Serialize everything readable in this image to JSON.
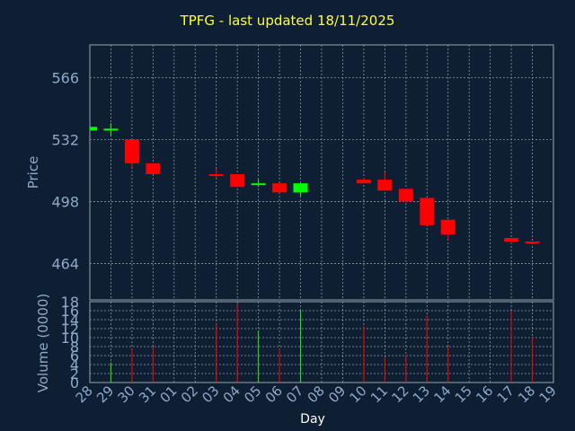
{
  "colors": {
    "background": "#0f1f33",
    "panel_border": "#9aa3ad",
    "grid": "#8c96a0",
    "axis_text": "#8fa8c8",
    "title": "#ffff33",
    "up": "#00ff00",
    "down": "#ff0000"
  },
  "chart_data": {
    "type": "candlestick",
    "title": "TPFG - last updated 18/11/2025",
    "xlabel": "Day",
    "ylabel_price": "Price",
    "ylabel_volume": "Volume (0000)",
    "x_ticks": [
      "28",
      "29",
      "30",
      "31",
      "01",
      "02",
      "03",
      "04",
      "05",
      "06",
      "07",
      "08",
      "09",
      "10",
      "11",
      "12",
      "13",
      "14",
      "15",
      "16",
      "17",
      "18",
      "19"
    ],
    "price_yticks": [
      464,
      498,
      532,
      566
    ],
    "price_ylim": [
      444,
      584
    ],
    "volume_yticks": [
      0,
      2,
      4,
      6,
      8,
      10,
      12,
      14,
      16,
      18
    ],
    "volume_ylim": [
      0,
      18
    ],
    "grid": true,
    "candles": [
      {
        "day": "28",
        "open": 537,
        "close": 539,
        "high": 539,
        "low": 537,
        "volume": 0
      },
      {
        "day": "29",
        "open": 537,
        "close": 538,
        "high": 541,
        "low": 534,
        "volume": 4.5
      },
      {
        "day": "30",
        "open": 532,
        "close": 519,
        "high": 532,
        "low": 517,
        "volume": 7.5
      },
      {
        "day": "31",
        "open": 519,
        "close": 513,
        "high": 519,
        "low": 513,
        "volume": 8
      },
      {
        "day": "03",
        "open": 513,
        "close": 512,
        "high": 516,
        "low": 511,
        "volume": 13
      },
      {
        "day": "04",
        "open": 513,
        "close": 506,
        "high": 513,
        "low": 506,
        "volume": 17.5
      },
      {
        "day": "05",
        "open": 507,
        "close": 508,
        "high": 510,
        "low": 506,
        "volume": 11.5
      },
      {
        "day": "06",
        "open": 508,
        "close": 503,
        "high": 508,
        "low": 503,
        "volume": 7.5
      },
      {
        "day": "07",
        "open": 503,
        "close": 508,
        "high": 508,
        "low": 501,
        "volume": 16
      },
      {
        "day": "10",
        "open": 510,
        "close": 508,
        "high": 511,
        "low": 508,
        "volume": 12.5
      },
      {
        "day": "11",
        "open": 510,
        "close": 504,
        "high": 514,
        "low": 504,
        "volume": 5.5
      },
      {
        "day": "12",
        "open": 505,
        "close": 498,
        "high": 505,
        "low": 498,
        "volume": 6
      },
      {
        "day": "13",
        "open": 500,
        "close": 485,
        "high": 500,
        "low": 485,
        "volume": 15
      },
      {
        "day": "14",
        "open": 488,
        "close": 480,
        "high": 488,
        "low": 477,
        "volume": 8
      },
      {
        "day": "17",
        "open": 478,
        "close": 476,
        "high": 478,
        "low": 475,
        "volume": 16
      },
      {
        "day": "18",
        "open": 476,
        "close": 475,
        "high": 476,
        "low": 475,
        "volume": 10
      }
    ]
  }
}
